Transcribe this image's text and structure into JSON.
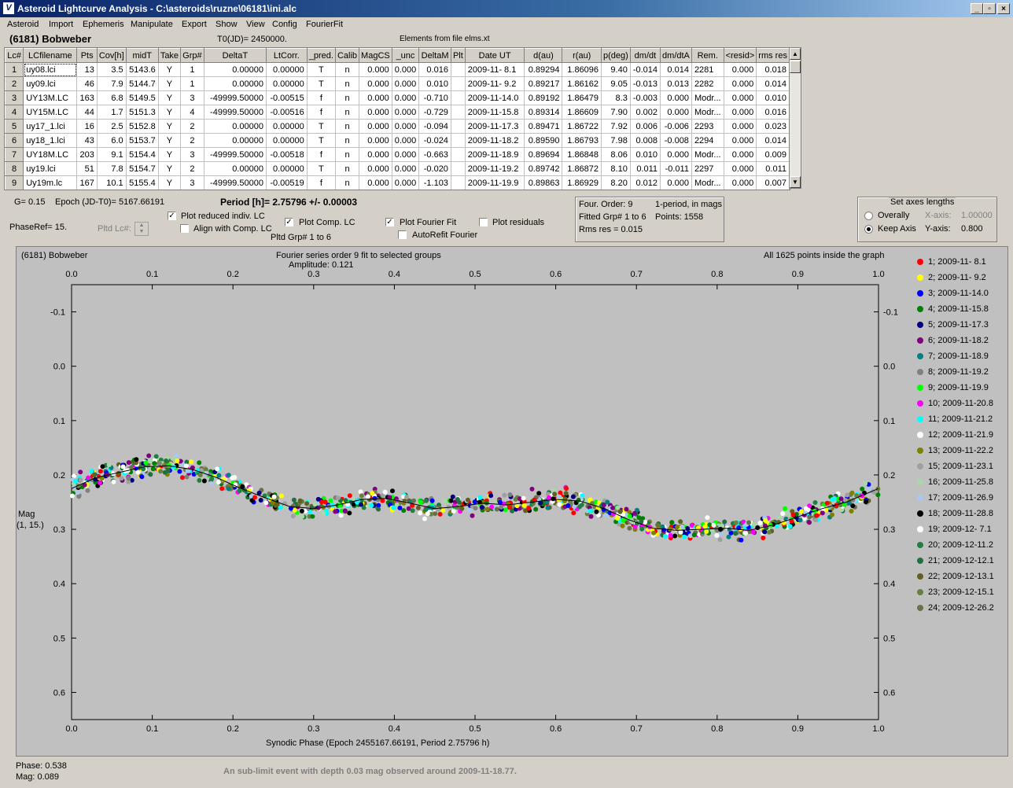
{
  "window": {
    "title": "Asteroid Lightcurve Analysis - C:\\asteroids\\ruzne\\06181\\ini.alc",
    "icon_glyph": "V"
  },
  "menu": [
    "Asteroid",
    "Import",
    "Ephemeris",
    "Manipulate",
    "Export",
    "Show",
    "View",
    "Config",
    "FourierFit"
  ],
  "header": {
    "asteroid": "(6181) Bobweber",
    "t0": "T0(JD)= 2450000.",
    "elements": "Elements from file elms.xt"
  },
  "table": {
    "columns": [
      "Lc#",
      "LCfilename",
      "Pts",
      "Cov[h]",
      "midT",
      "Take",
      "Grp#",
      "DeltaT",
      "LtCorr.",
      "_pred.",
      "Calib",
      "MagCS",
      "_unc",
      "DeltaM",
      "Plt",
      "Date UT",
      "d(au)",
      "r(au)",
      "p(deg)",
      "dm/dt",
      "dm/dtA",
      "Rem.",
      "<resid>",
      "rms res"
    ],
    "rows": [
      [
        "1",
        "uy08.lci",
        "13",
        "3.5",
        "5143.6",
        "Y",
        "1",
        "0.00000",
        "0.00000",
        "T",
        "n",
        "0.000",
        "0.000",
        "0.016",
        "",
        "2009-11- 8.1",
        "0.89294",
        "1.86096",
        "9.40",
        "-0.014",
        "0.014",
        "2281",
        "0.000",
        "0.018"
      ],
      [
        "2",
        "uy09.lci",
        "46",
        "7.9",
        "5144.7",
        "Y",
        "1",
        "0.00000",
        "0.00000",
        "T",
        "n",
        "0.000",
        "0.000",
        "0.010",
        "",
        "2009-11- 9.2",
        "0.89217",
        "1.86162",
        "9.05",
        "-0.013",
        "0.013",
        "2282",
        "0.000",
        "0.014"
      ],
      [
        "3",
        "UY13M.LC",
        "163",
        "6.8",
        "5149.5",
        "Y",
        "3",
        "-49999.50000",
        "-0.00515",
        "f",
        "n",
        "0.000",
        "0.000",
        "-0.710",
        "",
        "2009-11-14.0",
        "0.89192",
        "1.86479",
        "8.3",
        "-0.003",
        "0.000",
        "Modr...",
        "0.000",
        "0.010"
      ],
      [
        "4",
        "UY15M.LC",
        "44",
        "1.7",
        "5151.3",
        "Y",
        "4",
        "-49999.50000",
        "-0.00516",
        "f",
        "n",
        "0.000",
        "0.000",
        "-0.729",
        "",
        "2009-11-15.8",
        "0.89314",
        "1.86609",
        "7.90",
        "0.002",
        "0.000",
        "Modr...",
        "0.000",
        "0.016"
      ],
      [
        "5",
        "uy17_1.lci",
        "16",
        "2.5",
        "5152.8",
        "Y",
        "2",
        "0.00000",
        "0.00000",
        "T",
        "n",
        "0.000",
        "0.000",
        "-0.094",
        "",
        "2009-11-17.3",
        "0.89471",
        "1.86722",
        "7.92",
        "0.006",
        "-0.006",
        "2293",
        "0.000",
        "0.023"
      ],
      [
        "6",
        "uy18_1.lci",
        "43",
        "6.0",
        "5153.7",
        "Y",
        "2",
        "0.00000",
        "0.00000",
        "T",
        "n",
        "0.000",
        "0.000",
        "-0.024",
        "",
        "2009-11-18.2",
        "0.89590",
        "1.86793",
        "7.98",
        "0.008",
        "-0.008",
        "2294",
        "0.000",
        "0.014"
      ],
      [
        "7",
        "UY18M.LC",
        "203",
        "9.1",
        "5154.4",
        "Y",
        "3",
        "-49999.50000",
        "-0.00518",
        "f",
        "n",
        "0.000",
        "0.000",
        "-0.663",
        "",
        "2009-11-18.9",
        "0.89694",
        "1.86848",
        "8.06",
        "0.010",
        "0.000",
        "Modr...",
        "0.000",
        "0.009"
      ],
      [
        "8",
        "uy19.lci",
        "51",
        "7.8",
        "5154.7",
        "Y",
        "2",
        "0.00000",
        "0.00000",
        "T",
        "n",
        "0.000",
        "0.000",
        "-0.020",
        "",
        "2009-11-19.2",
        "0.89742",
        "1.86872",
        "8.10",
        "0.011",
        "-0.011",
        "2297",
        "0.000",
        "0.011"
      ],
      [
        "9",
        "Uy19m.lc",
        "167",
        "10.1",
        "5155.4",
        "Y",
        "3",
        "-49999.50000",
        "-0.00519",
        "f",
        "n",
        "0.000",
        "0.000",
        "-1.103",
        "",
        "2009-11-19.9",
        "0.89863",
        "1.86929",
        "8.20",
        "0.012",
        "0.000",
        "Modr...",
        "0.000",
        "0.007"
      ]
    ]
  },
  "controls": {
    "g": "G= 0.15",
    "epoch": "Epoch (JD-T0)= 5167.66191",
    "period": "Period [h]= 2.75796 +/- 0.00003",
    "phaseref": "PhaseRef= 15.",
    "pltd_lc": "Pltd Lc#:",
    "plot_reduced": "Plot reduced indiv. LC",
    "align_comp": "Align with Comp. LC",
    "plot_comp": "Plot Comp. LC",
    "pltd_grp": "Pltd Grp#  1   to   6",
    "plot_fourier": "Plot Fourier Fit",
    "autorefit": "AutoRefit Fourier",
    "plot_residuals": "Plot residuals",
    "checks": {
      "plot_reduced": true,
      "align_comp": false,
      "plot_comp": true,
      "plot_fourier": true,
      "autorefit": false,
      "plot_residuals": false
    }
  },
  "fourier_box": {
    "order": "Four. Order:  9",
    "mode": "1-period, in mags",
    "fitted": "Fitted Grp# 1 to 6",
    "points": "Points: 1558",
    "rms": "Rms res      = 0.015"
  },
  "axes_box": {
    "title": "Set axes lengths",
    "overally": "Overally",
    "keep": "Keep Axis",
    "xaxis_label": "X-axis:",
    "xaxis_value": "1.00000",
    "yaxis_label": "Y-axis:",
    "yaxis_value": "0.800",
    "selected": "keep"
  },
  "status": {
    "phase": "Phase:  0.538",
    "mag": "Mag:    0.089",
    "message": "An sub-limit event with depth 0.03 mag observed around 2009-11-18.77."
  },
  "chart_data": {
    "type": "scatter",
    "title": "(6181) Bobweber",
    "subtitle": "Fourier series order 9 fit to selected groups",
    "amplitude": "Amplitude: 0.121",
    "note": "All 1625 points inside the graph",
    "xlabel": "Synodic Phase (Epoch 2455167.66191, Period 2.75796 h)",
    "ylabel": "Mag",
    "ylabel2": "(1, 15.)",
    "xlim": [
      0.0,
      1.0
    ],
    "ylim": [
      -0.15,
      0.65
    ],
    "y_inverted": true,
    "xticks": [
      "0.0",
      "0.1",
      "0.2",
      "0.3",
      "0.4",
      "0.5",
      "0.6",
      "0.7",
      "0.8",
      "0.9",
      "1.0"
    ],
    "yticks": [
      "-0.1",
      "0.0",
      "0.1",
      "0.2",
      "0.3",
      "0.4",
      "0.5",
      "0.6"
    ],
    "background": "#c0c0c0",
    "fit_curve": {
      "x": [
        0.0,
        0.03,
        0.06,
        0.09,
        0.12,
        0.15,
        0.18,
        0.21,
        0.24,
        0.27,
        0.3,
        0.33,
        0.36,
        0.39,
        0.42,
        0.45,
        0.48,
        0.51,
        0.54,
        0.57,
        0.6,
        0.63,
        0.66,
        0.69,
        0.72,
        0.75,
        0.78,
        0.81,
        0.84,
        0.87,
        0.9,
        0.93,
        0.96,
        1.0
      ],
      "y": [
        0.225,
        0.205,
        0.195,
        0.185,
        0.183,
        0.19,
        0.205,
        0.225,
        0.242,
        0.258,
        0.262,
        0.255,
        0.245,
        0.243,
        0.252,
        0.262,
        0.258,
        0.252,
        0.255,
        0.25,
        0.245,
        0.248,
        0.262,
        0.282,
        0.298,
        0.302,
        0.3,
        0.298,
        0.302,
        0.292,
        0.277,
        0.262,
        0.25,
        0.225
      ]
    },
    "series": [
      {
        "name": "1; 2009-11- 8.1",
        "color": "#ff0000"
      },
      {
        "name": "2; 2009-11- 9.2",
        "color": "#ffff00"
      },
      {
        "name": "3; 2009-11-14.0",
        "color": "#0000ff"
      },
      {
        "name": "4; 2009-11-15.8",
        "color": "#008000"
      },
      {
        "name": "5; 2009-11-17.3",
        "color": "#000080"
      },
      {
        "name": "6; 2009-11-18.2",
        "color": "#800080"
      },
      {
        "name": "7; 2009-11-18.9",
        "color": "#008080"
      },
      {
        "name": "8; 2009-11-19.2",
        "color": "#808080"
      },
      {
        "name": "9; 2009-11-19.9",
        "color": "#00ff00"
      },
      {
        "name": "10; 2009-11-20.8",
        "color": "#ff00ff"
      },
      {
        "name": "11; 2009-11-21.2",
        "color": "#00ffff"
      },
      {
        "name": "12; 2009-11-21.9",
        "color": "#ffffff"
      },
      {
        "name": "13; 2009-11-22.2",
        "color": "#808000"
      },
      {
        "name": "15; 2009-11-23.1",
        "color": "#a0a0a0"
      },
      {
        "name": "16; 2009-11-25.8",
        "color": "#a8d8a8"
      },
      {
        "name": "17; 2009-11-26.9",
        "color": "#a8c8f0"
      },
      {
        "name": "18; 2009-11-28.8",
        "color": "#000000"
      },
      {
        "name": "19; 2009-12- 7.1",
        "color": "#ffffff"
      },
      {
        "name": "20; 2009-12-11.2",
        "color": "#208040"
      },
      {
        "name": "21; 2009-12-12.1",
        "color": "#207040"
      },
      {
        "name": "22; 2009-12-13.1",
        "color": "#606020"
      },
      {
        "name": "23; 2009-12-15.1",
        "color": "#6a8040"
      },
      {
        "name": "24; 2009-12-26.2",
        "color": "#6a7048"
      }
    ]
  }
}
